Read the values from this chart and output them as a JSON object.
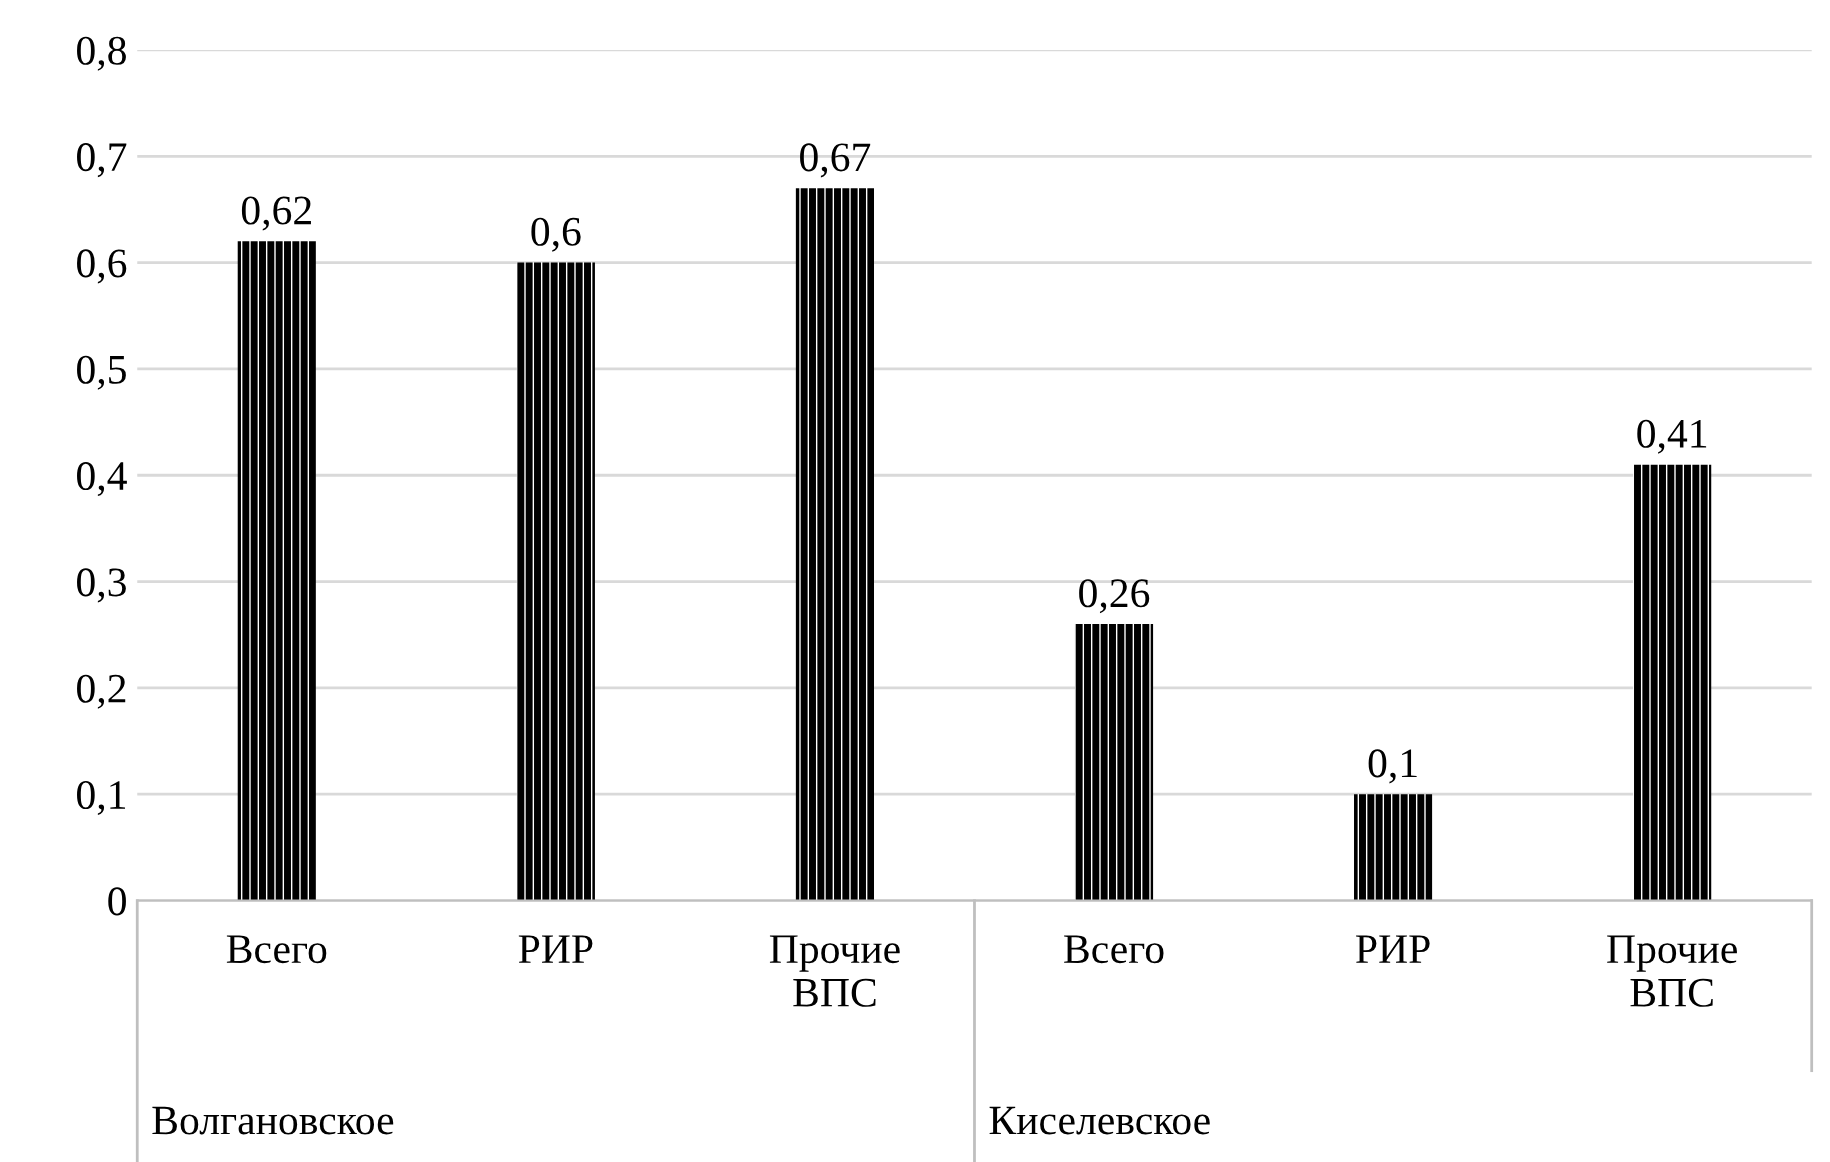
{
  "chart_data": {
    "type": "bar",
    "categories": [
      "Всего",
      "РИР",
      "Прочие ВПС",
      "Всего",
      "РИР",
      "Прочие ВПС"
    ],
    "values": [
      0.62,
      0.6,
      0.67,
      0.26,
      0.1,
      0.41
    ],
    "color": "#000000",
    "value_labels": [
      "0,62",
      "0,6",
      "0,67",
      "0,26",
      "0,1",
      "0,41"
    ],
    "annotations": [
      "Волгановское",
      "Киселевское"
    ],
    "ylim": [
      0,
      0.8
    ],
    "yticks": [
      {
        "value": 0,
        "label": "0"
      },
      {
        "value": 0.1,
        "label": "0,1"
      },
      {
        "value": 0.2,
        "label": "0,2"
      },
      {
        "value": 0.3,
        "label": "0,3"
      },
      {
        "value": 0.4,
        "label": "0,4"
      },
      {
        "value": 0.5,
        "label": "0,5"
      },
      {
        "value": 0.6,
        "label": "0,6"
      },
      {
        "value": 0.7,
        "label": "0,7"
      },
      {
        "value": 0.8,
        "label": "0,8"
      }
    ],
    "grid": "y"
  }
}
